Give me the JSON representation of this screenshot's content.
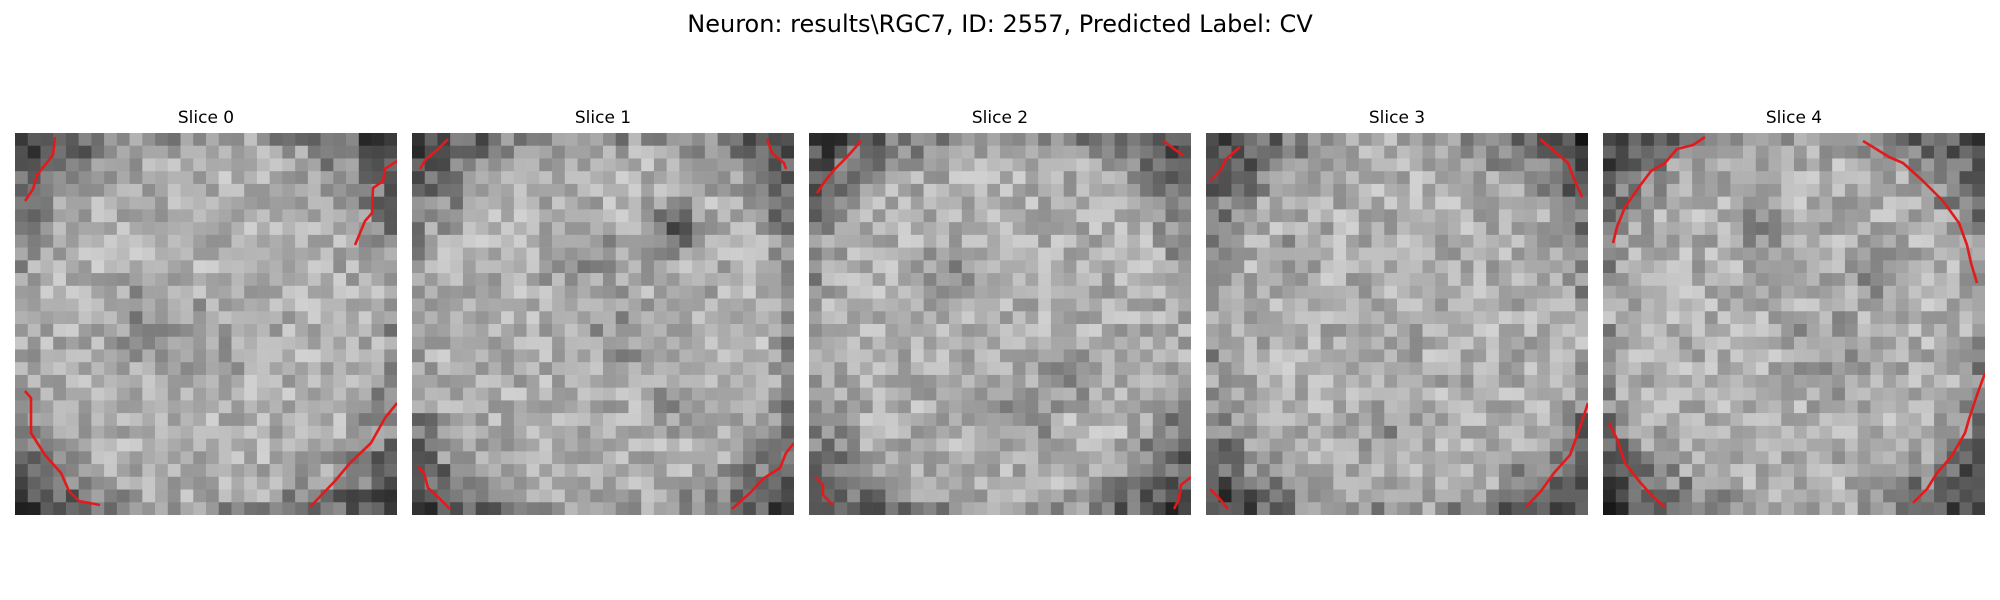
{
  "figure": {
    "title": "Neuron: results\\RGC7, ID: 2557, Predicted Label: CV"
  },
  "colors": {
    "contour": "#e31a1c",
    "background": "#ffffff"
  },
  "slices": [
    {
      "label": "Slice 0"
    },
    {
      "label": "Slice 1"
    },
    {
      "label": "Slice 2"
    },
    {
      "label": "Slice 3"
    },
    {
      "label": "Slice 4"
    }
  ]
}
